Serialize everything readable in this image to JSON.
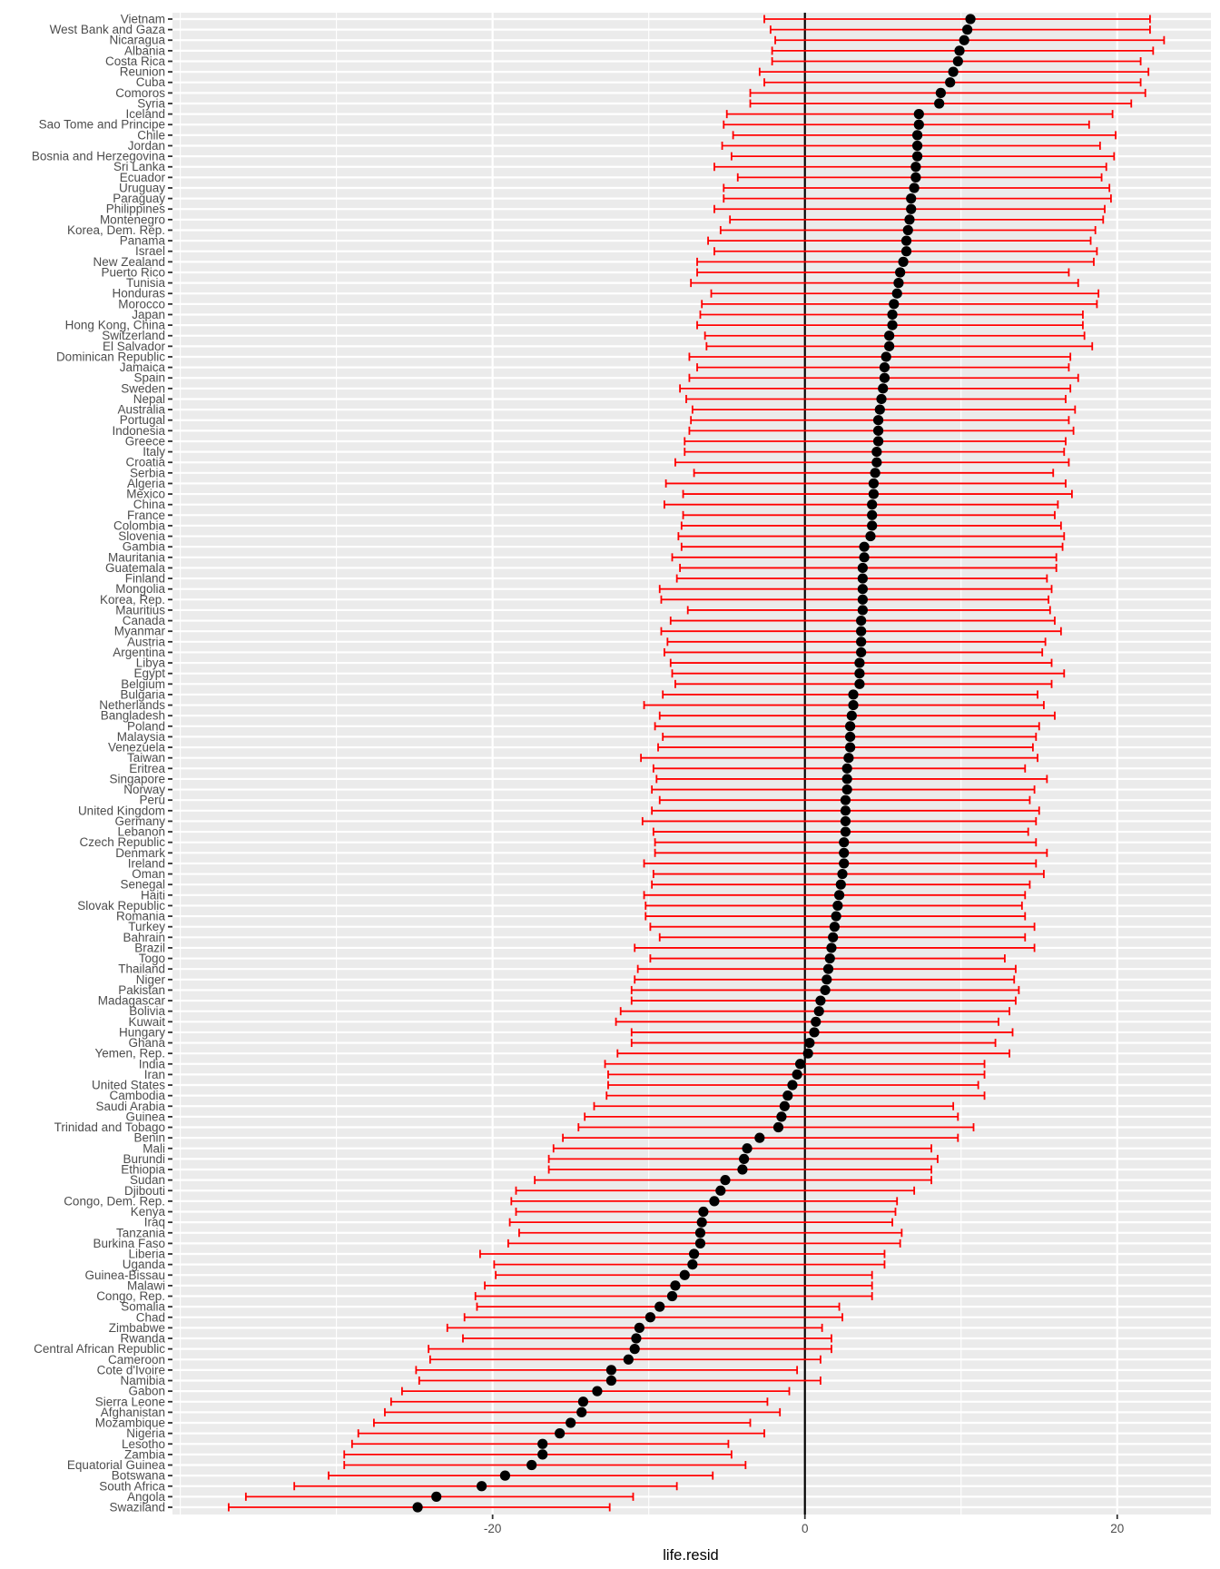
{
  "chart_data": {
    "type": "errorbar-dotplot",
    "xlabel": "life.resid",
    "ylabel": "",
    "title": "",
    "xlim": [
      -40.5,
      26
    ],
    "xticks": [
      -20,
      0,
      20
    ],
    "grid": true,
    "reference_line_x": 0,
    "colors": {
      "panel": "#ebebeb",
      "grid": "#ffffff",
      "errorbar": "#ff0000",
      "point": "#000000",
      "refline": "#000000"
    },
    "countries": [
      "Vietnam",
      "West Bank and Gaza",
      "Nicaragua",
      "Albania",
      "Costa Rica",
      "Reunion",
      "Cuba",
      "Comoros",
      "Syria",
      "Iceland",
      "Sao Tome and Principe",
      "Chile",
      "Jordan",
      "Bosnia and Herzegovina",
      "Sri Lanka",
      "Ecuador",
      "Uruguay",
      "Paraguay",
      "Philippines",
      "Montenegro",
      "Korea, Dem. Rep.",
      "Panama",
      "Israel",
      "New Zealand",
      "Puerto Rico",
      "Tunisia",
      "Honduras",
      "Morocco",
      "Japan",
      "Hong Kong, China",
      "Switzerland",
      "El Salvador",
      "Dominican Republic",
      "Jamaica",
      "Spain",
      "Sweden",
      "Nepal",
      "Australia",
      "Portugal",
      "Indonesia",
      "Greece",
      "Italy",
      "Croatia",
      "Serbia",
      "Algeria",
      "Mexico",
      "China",
      "France",
      "Colombia",
      "Slovenia",
      "Gambia",
      "Mauritania",
      "Guatemala",
      "Finland",
      "Mongolia",
      "Korea, Rep.",
      "Mauritius",
      "Canada",
      "Myanmar",
      "Austria",
      "Argentina",
      "Libya",
      "Egypt",
      "Belgium",
      "Bulgaria",
      "Netherlands",
      "Bangladesh",
      "Poland",
      "Malaysia",
      "Venezuela",
      "Taiwan",
      "Eritrea",
      "Singapore",
      "Norway",
      "Peru",
      "United Kingdom",
      "Germany",
      "Lebanon",
      "Czech Republic",
      "Denmark",
      "Ireland",
      "Oman",
      "Senegal",
      "Haiti",
      "Slovak Republic",
      "Romania",
      "Turkey",
      "Bahrain",
      "Brazil",
      "Togo",
      "Thailand",
      "Niger",
      "Pakistan",
      "Madagascar",
      "Bolivia",
      "Kuwait",
      "Hungary",
      "Ghana",
      "Yemen, Rep.",
      "India",
      "Iran",
      "United States",
      "Cambodia",
      "Saudi Arabia",
      "Guinea",
      "Trinidad and Tobago",
      "Benin",
      "Mali",
      "Burundi",
      "Ethiopia",
      "Sudan",
      "Djibouti",
      "Congo, Dem. Rep.",
      "Kenya",
      "Iraq",
      "Tanzania",
      "Burkina Faso",
      "Liberia",
      "Uganda",
      "Guinea-Bissau",
      "Malawi",
      "Congo, Rep.",
      "Somalia",
      "Chad",
      "Zimbabwe",
      "Rwanda",
      "Central African Republic",
      "Cameroon",
      "Cote d'Ivoire",
      "Namibia",
      "Gabon",
      "Sierra Leone",
      "Afghanistan",
      "Mozambique",
      "Nigeria",
      "Lesotho",
      "Zambia",
      "Equatorial Guinea",
      "Botswana",
      "South Africa",
      "Angola",
      "Swaziland"
    ],
    "resid": [
      10.6,
      10.4,
      10.2,
      9.9,
      9.8,
      9.5,
      9.3,
      8.7,
      8.6,
      7.3,
      7.3,
      7.2,
      7.2,
      7.2,
      7.1,
      7.1,
      7.0,
      6.8,
      6.8,
      6.7,
      6.6,
      6.5,
      6.5,
      6.3,
      6.1,
      6.0,
      5.9,
      5.7,
      5.6,
      5.6,
      5.4,
      5.4,
      5.2,
      5.1,
      5.1,
      5.0,
      4.9,
      4.8,
      4.7,
      4.7,
      4.7,
      4.6,
      4.6,
      4.5,
      4.4,
      4.4,
      4.3,
      4.3,
      4.3,
      4.2,
      3.8,
      3.8,
      3.7,
      3.7,
      3.7,
      3.7,
      3.7,
      3.6,
      3.6,
      3.6,
      3.6,
      3.5,
      3.5,
      3.5,
      3.1,
      3.1,
      3.0,
      2.9,
      2.9,
      2.9,
      2.8,
      2.7,
      2.7,
      2.7,
      2.6,
      2.6,
      2.6,
      2.6,
      2.5,
      2.5,
      2.5,
      2.4,
      2.3,
      2.2,
      2.1,
      2.0,
      1.9,
      1.8,
      1.7,
      1.6,
      1.5,
      1.4,
      1.3,
      1.0,
      0.9,
      0.7,
      0.6,
      0.3,
      0.2,
      -0.3,
      -0.5,
      -0.8,
      -1.1,
      -1.3,
      -1.5,
      -1.7,
      -2.9,
      -3.7,
      -3.9,
      -4.0,
      -5.1,
      -5.4,
      -5.8,
      -6.5,
      -6.6,
      -6.7,
      -6.7,
      -7.1,
      -7.2,
      -7.7,
      -8.3,
      -8.5,
      -9.3,
      -9.9,
      -10.6,
      -10.8,
      -10.9,
      -11.3,
      -12.4,
      -12.4,
      -13.3,
      -14.2,
      -14.3,
      -15.0,
      -15.7,
      -16.8,
      -16.8,
      -17.5,
      -19.2,
      -20.7,
      -23.6,
      -24.8
    ],
    "lower": [
      -2.6,
      -2.2,
      -1.9,
      -2.1,
      -2.1,
      -2.9,
      -2.6,
      -3.5,
      -3.5,
      -5.0,
      -5.2,
      -4.6,
      -5.3,
      -4.7,
      -5.8,
      -4.3,
      -5.2,
      -5.2,
      -5.8,
      -4.8,
      -5.4,
      -6.2,
      -5.8,
      -6.9,
      -6.9,
      -7.3,
      -6.0,
      -6.6,
      -6.7,
      -6.9,
      -6.4,
      -6.3,
      -7.4,
      -6.9,
      -7.4,
      -8.0,
      -7.6,
      -7.2,
      -7.3,
      -7.4,
      -7.7,
      -7.7,
      -8.3,
      -7.1,
      -8.9,
      -7.8,
      -9.0,
      -7.8,
      -7.9,
      -8.1,
      -7.9,
      -8.5,
      -8.0,
      -8.2,
      -9.3,
      -9.2,
      -7.5,
      -8.6,
      -9.2,
      -8.8,
      -9.0,
      -8.6,
      -8.5,
      -8.3,
      -9.1,
      -10.3,
      -9.3,
      -9.6,
      -9.1,
      -9.4,
      -10.5,
      -9.7,
      -9.5,
      -9.8,
      -9.3,
      -9.8,
      -10.4,
      -9.7,
      -9.6,
      -9.6,
      -10.3,
      -9.7,
      -9.8,
      -10.3,
      -10.2,
      -10.2,
      -9.9,
      -9.3,
      -10.9,
      -9.9,
      -10.7,
      -10.9,
      -11.1,
      -11.1,
      -11.8,
      -12.1,
      -11.1,
      -11.1,
      -12.0,
      -12.8,
      -12.6,
      -12.6,
      -12.7,
      -13.5,
      -14.1,
      -14.5,
      -15.5,
      -16.1,
      -16.4,
      -16.4,
      -17.3,
      -18.5,
      -18.8,
      -18.5,
      -18.9,
      -18.3,
      -19.0,
      -20.8,
      -19.9,
      -19.8,
      -20.5,
      -21.1,
      -21.0,
      -21.8,
      -22.9,
      -21.9,
      -24.1,
      -24.0,
      -24.9,
      -24.7,
      -25.8,
      -26.5,
      -26.9,
      -27.6,
      -28.6,
      -29.0,
      -29.5,
      -29.5,
      -30.5,
      -32.7,
      -35.8,
      -36.9
    ],
    "upper": [
      22.1,
      22.1,
      23.0,
      22.3,
      21.5,
      22.0,
      21.5,
      21.8,
      20.9,
      19.7,
      18.2,
      19.9,
      18.9,
      19.8,
      19.3,
      19.0,
      19.5,
      19.6,
      19.2,
      19.1,
      18.6,
      18.3,
      18.7,
      18.5,
      16.9,
      17.5,
      18.8,
      18.7,
      17.8,
      17.8,
      17.9,
      18.4,
      17.0,
      16.9,
      17.5,
      17.0,
      16.7,
      17.3,
      16.9,
      17.2,
      16.7,
      16.6,
      16.9,
      15.9,
      16.7,
      17.1,
      16.2,
      16.0,
      16.4,
      16.6,
      16.5,
      16.1,
      16.1,
      15.5,
      15.8,
      15.6,
      15.7,
      16.0,
      16.4,
      15.4,
      15.2,
      15.8,
      16.6,
      15.8,
      14.9,
      15.3,
      16.0,
      15.0,
      14.8,
      14.6,
      14.9,
      14.1,
      15.5,
      14.7,
      14.4,
      15.0,
      14.8,
      14.3,
      14.8,
      15.5,
      14.8,
      15.3,
      14.4,
      14.1,
      13.9,
      14.1,
      14.7,
      14.1,
      14.7,
      12.8,
      13.5,
      13.4,
      13.7,
      13.5,
      13.1,
      12.4,
      13.3,
      12.2,
      13.1,
      11.5,
      11.5,
      11.1,
      11.5,
      9.5,
      9.8,
      10.8,
      9.8,
      8.1,
      8.5,
      8.1,
      8.1,
      7.0,
      5.9,
      5.8,
      5.6,
      6.2,
      6.1,
      5.1,
      5.1,
      4.3,
      4.3,
      4.3,
      2.2,
      2.4,
      1.1,
      1.7,
      1.7,
      1.0,
      -0.5,
      1.0,
      -1.0,
      -2.4,
      -1.6,
      -3.5,
      -2.6,
      -4.9,
      -4.7,
      -3.8,
      -5.9,
      -8.2,
      -11.0,
      -12.5
    ]
  }
}
